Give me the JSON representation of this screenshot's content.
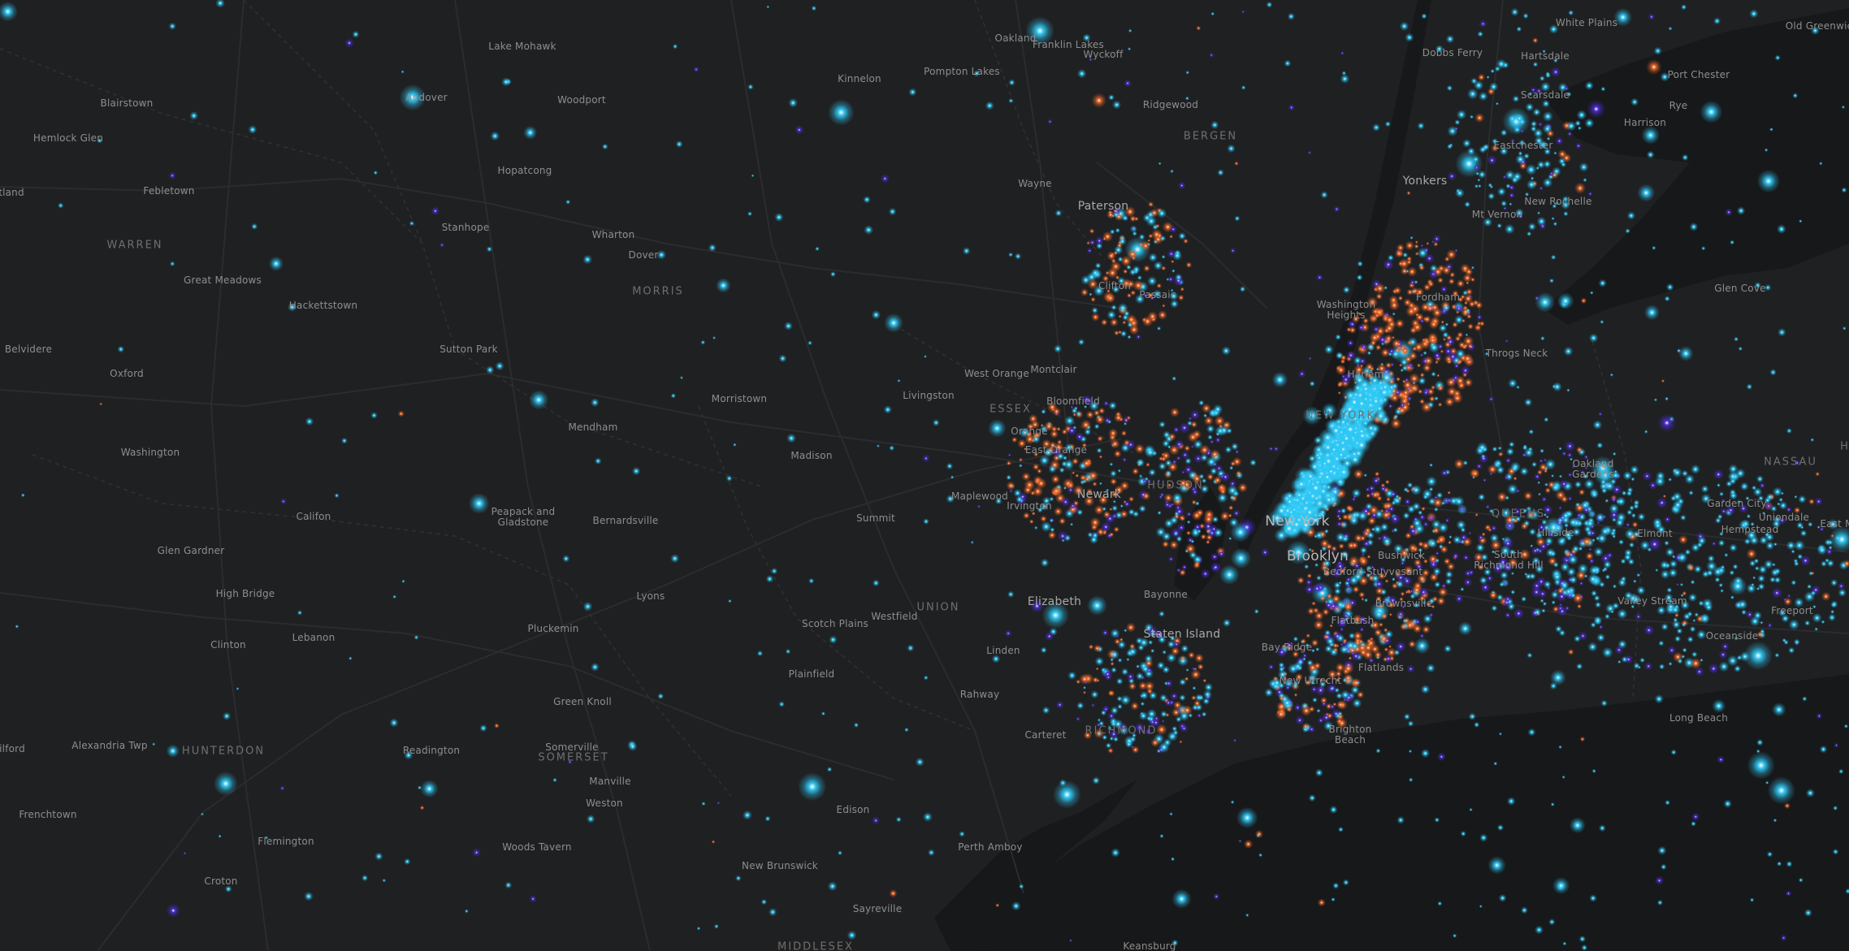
{
  "map": {
    "style": "dark gray basemap with glowing dot-density overlay",
    "colors": {
      "background": "#1f2022",
      "water": "#17181a",
      "roads": "#2b2c2e",
      "dot_cyan": "#2ec8f5",
      "dot_orange": "#f06a28",
      "dot_purple": "#4b2bd0"
    },
    "labels": [
      {
        "id": "lake-mohawk",
        "text": "Lake Mohawk",
        "kind": "town"
      },
      {
        "id": "oakland",
        "text": "Oakland",
        "kind": "town"
      },
      {
        "id": "franklin-lakes",
        "text": "Franklin Lakes",
        "kind": "town"
      },
      {
        "id": "wyckoff",
        "text": "Wyckoff",
        "kind": "town"
      },
      {
        "id": "white-plains",
        "text": "White Plains",
        "kind": "town"
      },
      {
        "id": "old-greenwich",
        "text": "Old Greenwich",
        "kind": "town"
      },
      {
        "id": "dobbs-ferry",
        "text": "Dobbs Ferry",
        "kind": "town"
      },
      {
        "id": "hartsdale",
        "text": "Hartsdale",
        "kind": "town"
      },
      {
        "id": "port-chester",
        "text": "Port Chester",
        "kind": "town"
      },
      {
        "id": "kinnelon",
        "text": "Kinnelon",
        "kind": "town"
      },
      {
        "id": "pompton-lakes",
        "text": "Pompton Lakes",
        "kind": "town"
      },
      {
        "id": "blairstown",
        "text": "Blairstown",
        "kind": "town"
      },
      {
        "id": "andover",
        "text": "Andover",
        "kind": "town"
      },
      {
        "id": "woodport",
        "text": "Woodport",
        "kind": "town"
      },
      {
        "id": "ridgewood",
        "text": "Ridgewood",
        "kind": "town"
      },
      {
        "id": "scarsdale",
        "text": "Scarsdale",
        "kind": "town"
      },
      {
        "id": "rye",
        "text": "Rye",
        "kind": "town"
      },
      {
        "id": "harrison",
        "text": "Harrison",
        "kind": "town"
      },
      {
        "id": "hemlock-glen",
        "text": "Hemlock Glen",
        "kind": "town"
      },
      {
        "id": "bergen",
        "text": "BERGEN",
        "kind": "county"
      },
      {
        "id": "eastchester",
        "text": "Eastchester",
        "kind": "town"
      },
      {
        "id": "hopatcong",
        "text": "Hopatcong",
        "kind": "town"
      },
      {
        "id": "wayne",
        "text": "Wayne",
        "kind": "town"
      },
      {
        "id": "tland",
        "text": "tland",
        "kind": "town"
      },
      {
        "id": "yonkers",
        "text": "Yonkers",
        "kind": "city"
      },
      {
        "id": "febletown",
        "text": "Febletown",
        "kind": "town"
      },
      {
        "id": "new-rochelle",
        "text": "New Rochelle",
        "kind": "town"
      },
      {
        "id": "paterson",
        "text": "Paterson",
        "kind": "city"
      },
      {
        "id": "mt-vernon",
        "text": "Mt Vernon",
        "kind": "town"
      },
      {
        "id": "stanhope",
        "text": "Stanhope",
        "kind": "town"
      },
      {
        "id": "wharton",
        "text": "Wharton",
        "kind": "town"
      },
      {
        "id": "warren",
        "text": "WARREN",
        "kind": "county"
      },
      {
        "id": "dover",
        "text": "Dover",
        "kind": "town"
      },
      {
        "id": "great-meadows",
        "text": "Great Meadows",
        "kind": "town"
      },
      {
        "id": "clifton",
        "text": "Clifton",
        "kind": "town"
      },
      {
        "id": "glen-cove",
        "text": "Glen Cove",
        "kind": "town"
      },
      {
        "id": "morris",
        "text": "MORRIS",
        "kind": "county"
      },
      {
        "id": "passaic",
        "text": "Passaic",
        "kind": "town"
      },
      {
        "id": "washington-heights",
        "text": "Washington\nHeights",
        "kind": "town"
      },
      {
        "id": "fordham",
        "text": "Fordham",
        "kind": "town"
      },
      {
        "id": "hackettstown",
        "text": "Hackettstown",
        "kind": "town"
      },
      {
        "id": "belvidere",
        "text": "Belvidere",
        "kind": "town"
      },
      {
        "id": "sutton-park",
        "text": "Sutton Park",
        "kind": "town"
      },
      {
        "id": "throgs-neck",
        "text": "Throgs Neck",
        "kind": "town"
      },
      {
        "id": "harlem",
        "text": "Harlem",
        "kind": "town"
      },
      {
        "id": "west-orange",
        "text": "West Orange",
        "kind": "town"
      },
      {
        "id": "montclair",
        "text": "Montclair",
        "kind": "town"
      },
      {
        "id": "oxford",
        "text": "Oxford",
        "kind": "town"
      },
      {
        "id": "livingston",
        "text": "Livingston",
        "kind": "town"
      },
      {
        "id": "morristown",
        "text": "Morristown",
        "kind": "town"
      },
      {
        "id": "bloomfield",
        "text": "Bloomfield",
        "kind": "town"
      },
      {
        "id": "essex",
        "text": "ESSEX",
        "kind": "county"
      },
      {
        "id": "new-york",
        "text": "NEW YORK",
        "kind": "county"
      },
      {
        "id": "mendham",
        "text": "Mendham",
        "kind": "town"
      },
      {
        "id": "orange",
        "text": "Orange",
        "kind": "town"
      },
      {
        "id": "east-orange",
        "text": "East Orange",
        "kind": "town"
      },
      {
        "id": "washington",
        "text": "Washington",
        "kind": "town"
      },
      {
        "id": "madison",
        "text": "Madison",
        "kind": "town"
      },
      {
        "id": "oakland-gardens",
        "text": "Oakland\nGardens",
        "kind": "town"
      },
      {
        "id": "nassau",
        "text": "NASSAU",
        "kind": "county"
      },
      {
        "id": "hudson",
        "text": "HUDSON",
        "kind": "county"
      },
      {
        "id": "maplewood",
        "text": "Maplewood",
        "kind": "town"
      },
      {
        "id": "newark",
        "text": "Newark",
        "kind": "city"
      },
      {
        "id": "irvington",
        "text": "Irvington",
        "kind": "town"
      },
      {
        "id": "garden-city",
        "text": "Garden City",
        "kind": "town"
      },
      {
        "id": "queens",
        "text": "QUEENS",
        "kind": "county"
      },
      {
        "id": "peapack",
        "text": "Peapack and\nGladstone",
        "kind": "town"
      },
      {
        "id": "califon",
        "text": "Califon",
        "kind": "town"
      },
      {
        "id": "summit",
        "text": "Summit",
        "kind": "town"
      },
      {
        "id": "new-york-city",
        "text": "New York",
        "kind": "city-big"
      },
      {
        "id": "uniondale",
        "text": "Uniondale",
        "kind": "town"
      },
      {
        "id": "bernardsville",
        "text": "Bernardsville",
        "kind": "town"
      },
      {
        "id": "hempstead",
        "text": "Hempstead",
        "kind": "town"
      },
      {
        "id": "east-m",
        "text": "East M",
        "kind": "town"
      },
      {
        "id": "hillside",
        "text": "Hillside",
        "kind": "town"
      },
      {
        "id": "elmont",
        "text": "Elmont",
        "kind": "town"
      },
      {
        "id": "glen-gardner",
        "text": "Glen Gardner",
        "kind": "town"
      },
      {
        "id": "bushwick",
        "text": "Bushwick",
        "kind": "town"
      },
      {
        "id": "brooklyn",
        "text": "Brooklyn",
        "kind": "city-big"
      },
      {
        "id": "south-richmond-hill",
        "text": "South\nRichmond Hill",
        "kind": "town"
      },
      {
        "id": "bedford-stuyvesant",
        "text": "Bedford-Stuyvesant",
        "kind": "town"
      },
      {
        "id": "high-bridge",
        "text": "High Bridge",
        "kind": "town"
      },
      {
        "id": "lyons",
        "text": "Lyons",
        "kind": "town"
      },
      {
        "id": "bayonne",
        "text": "Bayonne",
        "kind": "town"
      },
      {
        "id": "valley-stream",
        "text": "Valley Stream",
        "kind": "town"
      },
      {
        "id": "brownsville",
        "text": "Brownsville",
        "kind": "town"
      },
      {
        "id": "elizabeth",
        "text": "Elizabeth",
        "kind": "city"
      },
      {
        "id": "freeport",
        "text": "Freeport",
        "kind": "town"
      },
      {
        "id": "westfield",
        "text": "Westfield",
        "kind": "town"
      },
      {
        "id": "union",
        "text": "UNION",
        "kind": "county"
      },
      {
        "id": "flatbush",
        "text": "Flatbush",
        "kind": "town"
      },
      {
        "id": "lebanon",
        "text": "Lebanon",
        "kind": "town"
      },
      {
        "id": "pluckemin",
        "text": "Pluckemin",
        "kind": "town"
      },
      {
        "id": "scotch-plains",
        "text": "Scotch Plains",
        "kind": "town"
      },
      {
        "id": "staten-island",
        "text": "Staten Island",
        "kind": "city"
      },
      {
        "id": "oceanside",
        "text": "Oceanside",
        "kind": "town"
      },
      {
        "id": "clinton",
        "text": "Clinton",
        "kind": "town"
      },
      {
        "id": "bay-ridge",
        "text": "Bay Ridge",
        "kind": "town"
      },
      {
        "id": "linden",
        "text": "Linden",
        "kind": "town"
      },
      {
        "id": "flatlands",
        "text": "Flatlands",
        "kind": "town"
      },
      {
        "id": "plainfield",
        "text": "Plainfield",
        "kind": "town"
      },
      {
        "id": "new-utrecht",
        "text": "New Utrecht",
        "kind": "town"
      },
      {
        "id": "rahway",
        "text": "Rahway",
        "kind": "town"
      },
      {
        "id": "green-knoll",
        "text": "Green Knoll",
        "kind": "town"
      },
      {
        "id": "long-beach",
        "text": "Long Beach",
        "kind": "town"
      },
      {
        "id": "richmond",
        "text": "RICHMOND",
        "kind": "county"
      },
      {
        "id": "brighton-beach",
        "text": "Brighton\nBeach",
        "kind": "town"
      },
      {
        "id": "carteret",
        "text": "Carteret",
        "kind": "town"
      },
      {
        "id": "ilford",
        "text": "ilford",
        "kind": "town"
      },
      {
        "id": "alexandria-twp",
        "text": "Alexandria Twp",
        "kind": "town"
      },
      {
        "id": "hunterdon",
        "text": "HUNTERDON",
        "kind": "county"
      },
      {
        "id": "readington",
        "text": "Readington",
        "kind": "town"
      },
      {
        "id": "somerville",
        "text": "Somerville",
        "kind": "town"
      },
      {
        "id": "somerset",
        "text": "SOMERSET",
        "kind": "county"
      },
      {
        "id": "manville",
        "text": "Manville",
        "kind": "town"
      },
      {
        "id": "weston",
        "text": "Weston",
        "kind": "town"
      },
      {
        "id": "frenchtown",
        "text": "Frenchtown",
        "kind": "town"
      },
      {
        "id": "edison",
        "text": "Edison",
        "kind": "town"
      },
      {
        "id": "flemington",
        "text": "Flemington",
        "kind": "town"
      },
      {
        "id": "woods-tavern",
        "text": "Woods Tavern",
        "kind": "town"
      },
      {
        "id": "perth-amboy",
        "text": "Perth Amboy",
        "kind": "town"
      },
      {
        "id": "new-brunswick",
        "text": "New Brunswick",
        "kind": "town"
      },
      {
        "id": "croton",
        "text": "Croton",
        "kind": "town"
      },
      {
        "id": "sayreville",
        "text": "Sayreville",
        "kind": "town"
      },
      {
        "id": "middlesex",
        "text": "MIDDLESEX",
        "kind": "county"
      },
      {
        "id": "keansburg",
        "text": "Keansburg",
        "kind": "town"
      },
      {
        "id": "h-edge",
        "text": "H",
        "kind": "county"
      }
    ]
  }
}
